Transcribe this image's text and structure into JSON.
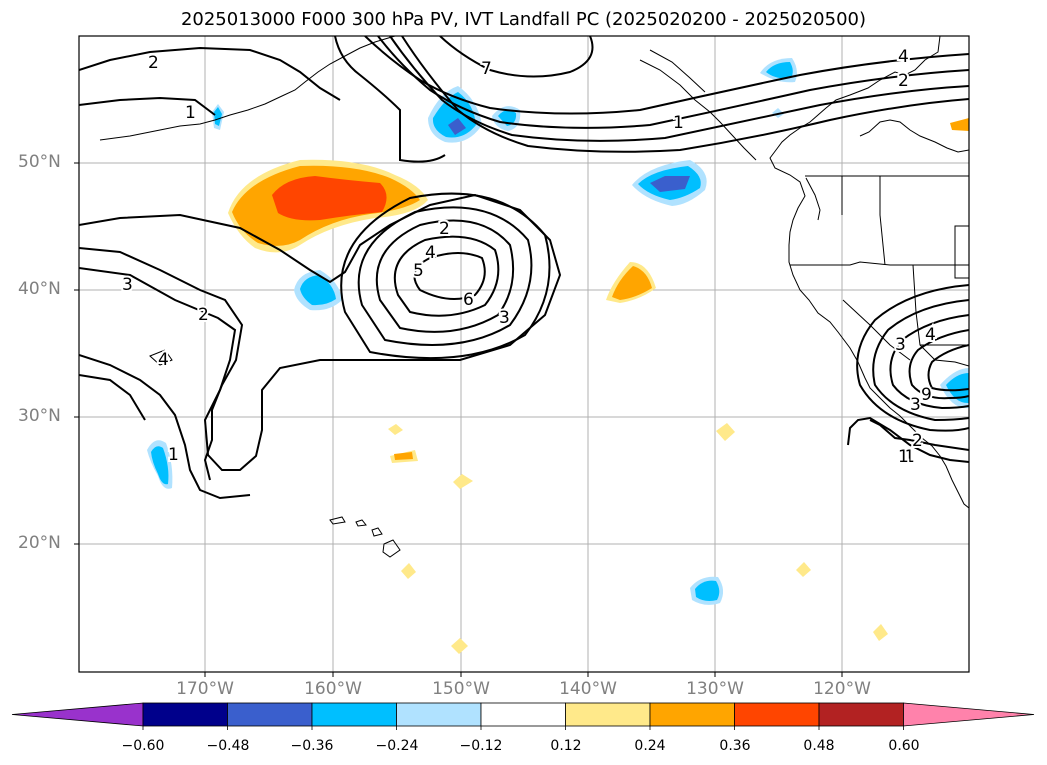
{
  "title": "2025013000 F000 300 hPa PV, IVT Landfall PC (2025020200 - 2025020500)",
  "lat_labels": [
    "50°N",
    "40°N",
    "30°N",
    "20°N"
  ],
  "lon_labels": [
    "170°W",
    "160°W",
    "150°W",
    "140°W",
    "130°W",
    "120°W"
  ],
  "colorbar": {
    "labels": [
      "−0.60",
      "−0.48",
      "−0.36",
      "−0.24",
      "−0.12",
      "0.12",
      "0.24",
      "0.36",
      "0.48",
      "0.60"
    ],
    "colors": [
      "#9932CC",
      "#00008B",
      "#3A5FCD",
      "#00BFFF",
      "#B0E2FF",
      "#FFFFFF",
      "#FFE98A",
      "#FFA500",
      "#FF4500",
      "#B22222",
      "#FF82AB"
    ]
  },
  "contour_labels": [
    "2",
    "7",
    "4",
    "2",
    "1",
    "1",
    "2",
    "4",
    "5",
    "6",
    "3",
    "3",
    "2",
    "4",
    "1",
    "1",
    "4",
    "3",
    "9",
    "3",
    "2",
    "1"
  ]
}
